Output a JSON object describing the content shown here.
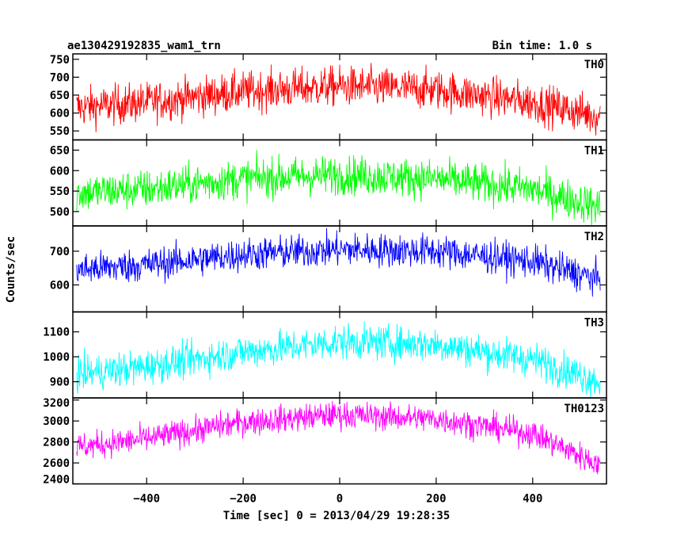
{
  "chart_data": {
    "type": "line",
    "title": "ae130429192835_wam1_trn",
    "bin_time_label": "Bin time: 1.0 s",
    "xlabel": "Time [sec] 0 = 2013/04/29 19:28:35",
    "ylabel": "Counts/sec",
    "xlim": [
      -553,
      553
    ],
    "x_ticks": [
      -400,
      -200,
      0,
      200,
      400
    ],
    "x_tick_labels": [
      "−400",
      "−200",
      "0",
      "200",
      "400"
    ],
    "data_x_range": [
      -545,
      540
    ],
    "grid": false,
    "series": [
      {
        "name": "TH0",
        "color": "#ff0000",
        "ylim": [
          525,
          765
        ],
        "y_ticks": [
          550,
          600,
          650,
          700,
          750
        ],
        "y_tick_labels": [
          "550",
          "600",
          "650",
          "700",
          "750"
        ],
        "trend_x": [
          -545,
          -400,
          -200,
          0,
          200,
          400,
          540
        ],
        "trend_y": [
          615,
          630,
          660,
          675,
          665,
          630,
          590
        ],
        "noise_sd": 28
      },
      {
        "name": "TH1",
        "color": "#00ff00",
        "ylim": [
          465,
          675
        ],
        "y_ticks": [
          500,
          550,
          600,
          650
        ],
        "y_tick_labels": [
          "500",
          "550",
          "600",
          "650"
        ],
        "trend_x": [
          -545,
          -400,
          -200,
          0,
          200,
          400,
          540
        ],
        "trend_y": [
          545,
          555,
          580,
          590,
          580,
          555,
          510
        ],
        "noise_sd": 24
      },
      {
        "name": "TH2",
        "color": "#0000ff",
        "ylim": [
          520,
          775
        ],
        "y_ticks": [
          600,
          700
        ],
        "y_tick_labels": [
          "600",
          "700"
        ],
        "trend_x": [
          -545,
          -400,
          -200,
          0,
          200,
          400,
          540
        ],
        "trend_y": [
          645,
          660,
          690,
          705,
          700,
          670,
          615
        ],
        "noise_sd": 25
      },
      {
        "name": "TH3",
        "color": "#00ffff",
        "ylim": [
          835,
          1180
        ],
        "y_ticks": [
          900,
          1000,
          1100
        ],
        "y_tick_labels": [
          "900",
          "1000",
          "1100"
        ],
        "trend_x": [
          -545,
          -400,
          -200,
          0,
          200,
          400,
          540
        ],
        "trend_y": [
          930,
          960,
          1020,
          1060,
          1050,
          990,
          900
        ],
        "noise_sd": 35
      },
      {
        "name": "TH0123",
        "color": "#ff00ff",
        "ylim": [
          2400,
          3220
        ],
        "y_ticks": [
          2400,
          2600,
          2800,
          3000,
          3200
        ],
        "y_tick_labels": [
          "2400",
          "2600",
          "2800",
          "3000",
          "3200"
        ],
        "trend_x": [
          -545,
          -400,
          -200,
          0,
          200,
          400,
          540
        ],
        "trend_y": [
          2750,
          2830,
          2990,
          3060,
          3020,
          2880,
          2580
        ],
        "noise_sd": 65
      }
    ]
  }
}
